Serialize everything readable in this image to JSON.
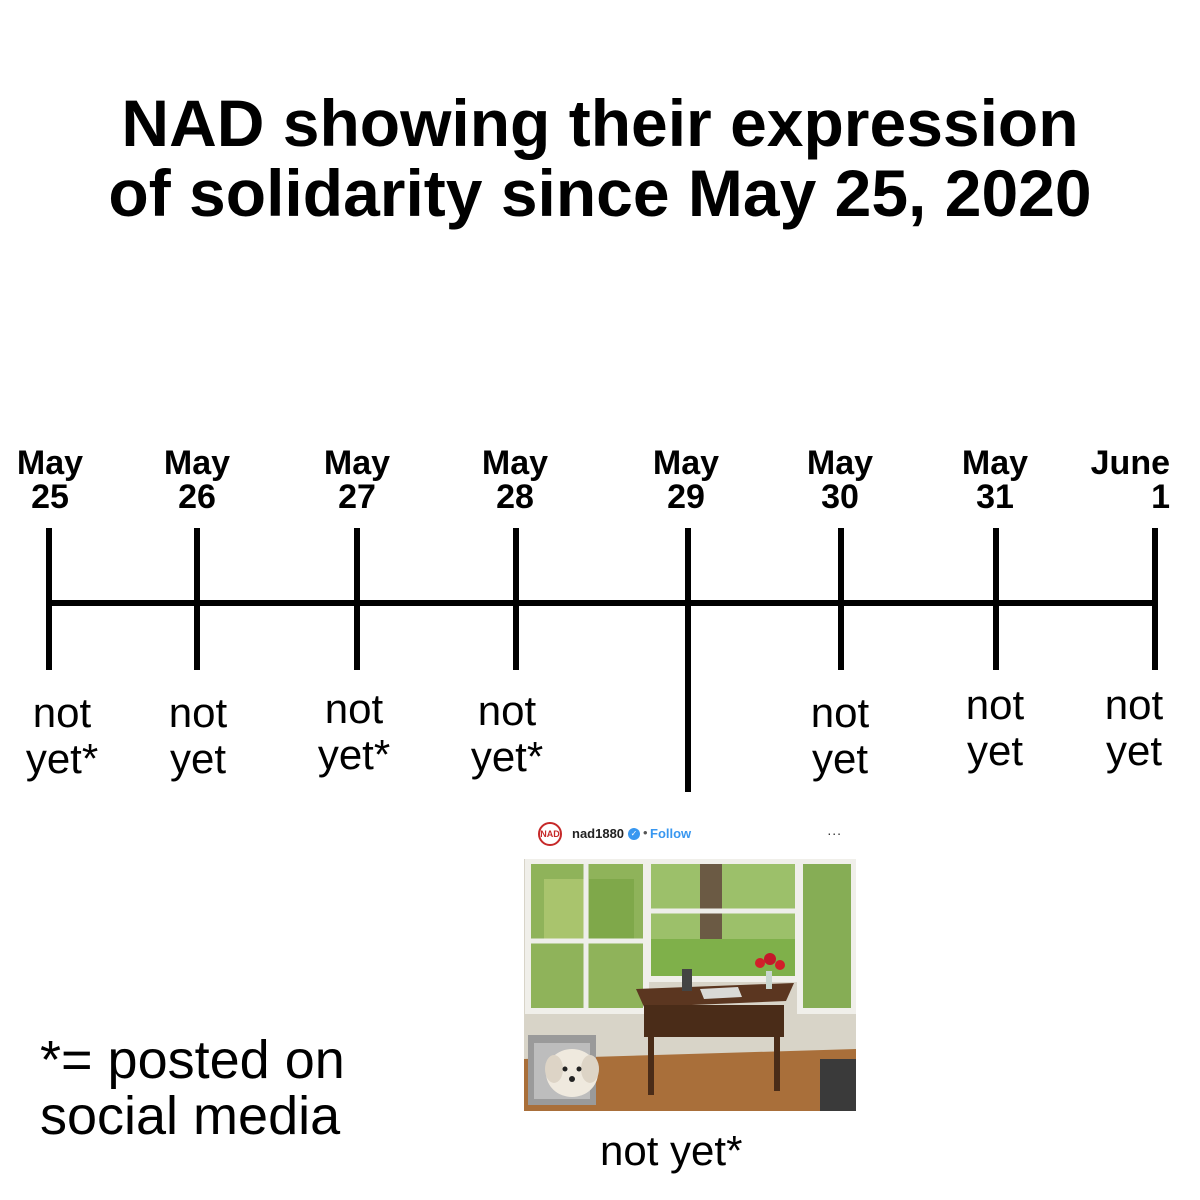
{
  "title": {
    "line1": "NAD showing their expression",
    "line2": "of solidarity since May 25, 2020"
  },
  "timeline": {
    "dates": [
      {
        "month": "May",
        "day": "25"
      },
      {
        "month": "May",
        "day": "26"
      },
      {
        "month": "May",
        "day": "27"
      },
      {
        "month": "May",
        "day": "28"
      },
      {
        "month": "May",
        "day": "29"
      },
      {
        "month": "May",
        "day": "30"
      },
      {
        "month": "May",
        "day": "31"
      },
      {
        "month": "June",
        "day": "1"
      }
    ],
    "statuses": [
      {
        "line1": "not",
        "line2": "yet*"
      },
      {
        "line1": "not",
        "line2": "yet"
      },
      {
        "line1": "not",
        "line2": "yet*"
      },
      {
        "line1": "not",
        "line2": "yet*"
      },
      {
        "line1": "not",
        "line2": "yet"
      },
      {
        "line1": "not",
        "line2": "yet"
      },
      {
        "line1": "not",
        "line2": "yet"
      }
    ]
  },
  "footnote": {
    "line1": "*= posted on",
    "line2": "social media"
  },
  "post": {
    "avatar_text": "NAD",
    "username": "nad1880",
    "separator": "•",
    "follow": "Follow",
    "more": "...",
    "icons": [
      "nad-logo-avatar",
      "verified-badge-icon",
      "more-options-icon"
    ],
    "photo_description_icon": "room-photo"
  },
  "caption": "not yet*",
  "colors": {
    "background": "#ffffff",
    "text": "#000000",
    "instagram_blue": "#3897f0",
    "nad_red": "#c62828"
  }
}
